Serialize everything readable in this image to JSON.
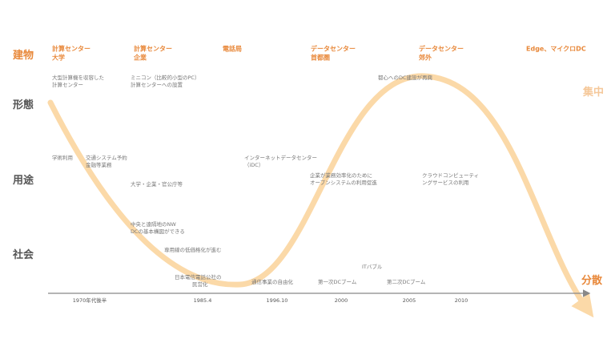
{
  "rows": [
    "建物",
    "形態",
    "用途",
    "社会"
  ],
  "columns": [
    [
      "計算センター",
      "大学"
    ],
    [
      "計算センター",
      "企業"
    ],
    [
      "電話局"
    ],
    [
      "データセンター",
      "首都圏"
    ],
    [
      "データセンター",
      "郊外"
    ],
    [
      "Edge、マイクロDC"
    ]
  ],
  "notes": [
    [
      "大型計算機を収容した",
      "計算センター"
    ],
    [
      "ミニコン（比較的小型のPC）",
      "計算センターへの設置"
    ],
    [
      "都心へのDC建設が再興"
    ],
    [
      "学術利用"
    ],
    [
      "交通システム予約",
      "金融等業務"
    ],
    [
      "インターネットデータセンター",
      "（iDC）"
    ],
    [
      "大学・企業・官公庁等"
    ],
    [
      "企業が業務効率化のために",
      "オープンシステムの利用促進"
    ],
    [
      "クラウドコンピューティ",
      "ングサービスの利用"
    ],
    [
      "中央と遠隔地のNW",
      "DCの基本構図ができる"
    ],
    [
      "専用線の低価格化が進む"
    ],
    [
      "ITバブル"
    ],
    [
      "日本電信電話公社の",
      "民営化"
    ],
    [
      "通信事業の自由化"
    ],
    [
      "第一次DCブーム"
    ],
    [
      "第二次DCブーム"
    ]
  ],
  "timeline": [
    "1970年代後半",
    "1985.4",
    "1996.10",
    "2000",
    "2005",
    "2010"
  ],
  "curve_labels": {
    "top": "集中",
    "bottom": "分散"
  }
}
